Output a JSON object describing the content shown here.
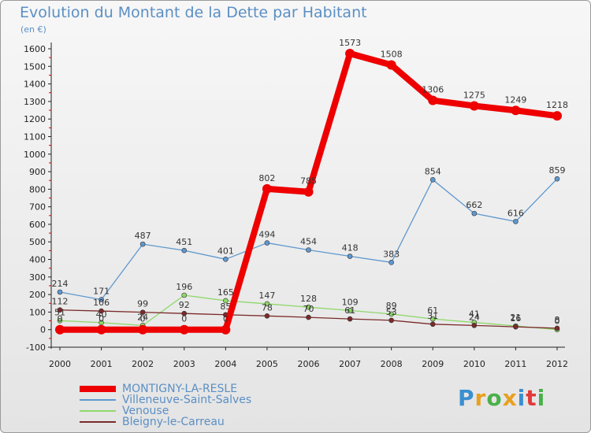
{
  "title": "Evolution du Montant de la Dette par Habitant",
  "subtitle": "(en €)",
  "logo": {
    "text": "Proxiti",
    "colors": [
      "#3a8fd0",
      "#e8a020",
      "#49b04a",
      "#e8a020",
      "#3a8fd0",
      "#e23a3a",
      "#49b04a"
    ]
  },
  "chart_data": {
    "type": "line",
    "x": [
      2000,
      2001,
      2002,
      2003,
      2004,
      2005,
      2006,
      2007,
      2008,
      2009,
      2010,
      2011,
      2012
    ],
    "ylim": [
      -100,
      1600
    ],
    "yticks": [
      -100,
      0,
      100,
      200,
      300,
      400,
      500,
      600,
      700,
      800,
      900,
      1000,
      1100,
      1200,
      1300,
      1400,
      1500,
      1600
    ],
    "grid": false,
    "legend_position": "bottom-left",
    "series": [
      {
        "name": "Villeneuve-Saint-Salves",
        "color": "#5f98cf",
        "width": 1.3,
        "values": [
          214,
          171,
          487,
          451,
          401,
          494,
          454,
          418,
          383,
          854,
          662,
          616,
          859
        ],
        "labels": [
          "214",
          "171",
          "487",
          "451",
          "401",
          "494",
          "454",
          "418",
          "383",
          "854",
          "662",
          "616",
          "859"
        ]
      },
      {
        "name": "Venouse",
        "color": "#8fd86a",
        "width": 1.3,
        "values": [
          51,
          40,
          24,
          196,
          165,
          147,
          128,
          109,
          89,
          61,
          41,
          21,
          0
        ],
        "labels": [
          "51",
          "40",
          "24",
          "196",
          "165",
          "147",
          "128",
          "109",
          "89",
          "61",
          "41",
          "21",
          "0"
        ]
      },
      {
        "name": "Bleigny-le-Carreau",
        "color": "#7b2a2a",
        "width": 1.3,
        "values": [
          112,
          106,
          99,
          92,
          85,
          78,
          70,
          61,
          53,
          31,
          24,
          16,
          8
        ],
        "labels": [
          "112",
          "106",
          "99",
          "92",
          "85",
          "78",
          "70",
          "61",
          "53",
          "31",
          "24",
          "16",
          "8"
        ]
      },
      {
        "name": "MONTIGNY-LA-RESLE",
        "color": "#ee0000",
        "width": 8,
        "values": [
          0,
          0,
          0,
          0,
          0,
          802,
          785,
          1573,
          1508,
          1306,
          1275,
          1249,
          1218
        ],
        "labels": [
          "0",
          "0",
          "0",
          "0",
          "0",
          "802",
          "785",
          "1573",
          "1508",
          "1306",
          "1275",
          "1249",
          "1218"
        ]
      }
    ],
    "legend": [
      {
        "name": "MONTIGNY-LA-RESLE",
        "color": "#ee0000",
        "width": 8
      },
      {
        "name": "Villeneuve-Saint-Salves",
        "color": "#5f98cf",
        "width": 2
      },
      {
        "name": "Venouse",
        "color": "#8fd86a",
        "width": 2
      },
      {
        "name": "Bleigny-le-Carreau",
        "color": "#7b2a2a",
        "width": 2
      }
    ]
  }
}
